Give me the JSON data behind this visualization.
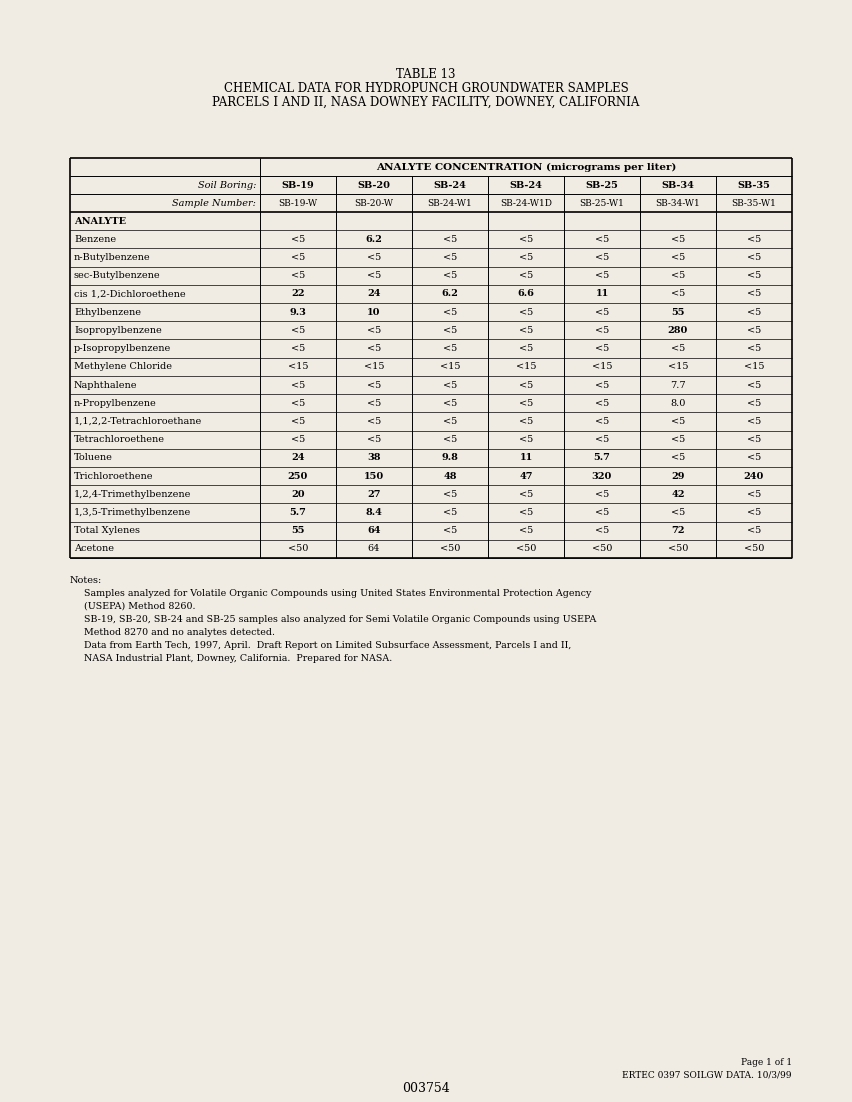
{
  "title_line1": "TABLE 13",
  "title_line2": "CHEMICAL DATA FOR HYDROPUNCH GROUNDWATER SAMPLES",
  "title_line3": "PARCELS I AND II, NASA DOWNEY FACILITY, DOWNEY, CALIFORNIA",
  "header_concentration": "ANALYTE CONCENTRATION (micrograms per liter)",
  "col_headers_boring": [
    "SB-19",
    "SB-20",
    "SB-24",
    "SB-24",
    "SB-25",
    "SB-34",
    "SB-35"
  ],
  "col_headers_sample": [
    "SB-19-W",
    "SB-20-W",
    "SB-24-W1",
    "SB-24-W1D",
    "SB-25-W1",
    "SB-34-W1",
    "SB-35-W1"
  ],
  "analytes": [
    "ANALYTE",
    "Benzene",
    "n-Butylbenzene",
    "sec-Butylbenzene",
    "cis 1,2-Dichloroethene",
    "Ethylbenzene",
    "Isopropylbenzene",
    "p-Isopropylbenzene",
    "Methylene Chloride",
    "Naphthalene",
    "n-Propylbenzene",
    "1,1,2,2-Tetrachloroethane",
    "Tetrachloroethene",
    "Toluene",
    "Trichloroethene",
    "1,2,4-Trimethylbenzene",
    "1,3,5-Trimethylbenzene",
    "Total Xylenes",
    "Acetone"
  ],
  "data": [
    [
      "",
      "",
      "",
      "",
      "",
      "",
      ""
    ],
    [
      "<5",
      "6.2",
      "<5",
      "<5",
      "<5",
      "<5",
      "<5"
    ],
    [
      "<5",
      "<5",
      "<5",
      "<5",
      "<5",
      "<5",
      "<5"
    ],
    [
      "<5",
      "<5",
      "<5",
      "<5",
      "<5",
      "<5",
      "<5"
    ],
    [
      "22",
      "24",
      "6.2",
      "6.6",
      "11",
      "<5",
      "<5"
    ],
    [
      "9.3",
      "10",
      "<5",
      "<5",
      "<5",
      "55",
      "<5"
    ],
    [
      "<5",
      "<5",
      "<5",
      "<5",
      "<5",
      "280",
      "<5"
    ],
    [
      "<5",
      "<5",
      "<5",
      "<5",
      "<5",
      "<5",
      "<5"
    ],
    [
      "<15",
      "<15",
      "<15",
      "<15",
      "<15",
      "<15",
      "<15"
    ],
    [
      "<5",
      "<5",
      "<5",
      "<5",
      "<5",
      "7.7",
      "<5"
    ],
    [
      "<5",
      "<5",
      "<5",
      "<5",
      "<5",
      "8.0",
      "<5"
    ],
    [
      "<5",
      "<5",
      "<5",
      "<5",
      "<5",
      "<5",
      "<5"
    ],
    [
      "<5",
      "<5",
      "<5",
      "<5",
      "<5",
      "<5",
      "<5"
    ],
    [
      "24",
      "38",
      "9.8",
      "11",
      "5.7",
      "<5",
      "<5"
    ],
    [
      "250",
      "150",
      "48",
      "47",
      "320",
      "29",
      "240"
    ],
    [
      "20",
      "27",
      "<5",
      "<5",
      "<5",
      "42",
      "<5"
    ],
    [
      "5.7",
      "8.4",
      "<5",
      "<5",
      "<5",
      "<5",
      "<5"
    ],
    [
      "55",
      "64",
      "<5",
      "<5",
      "<5",
      "72",
      "<5"
    ],
    [
      "<50",
      "64",
      "<50",
      "<50",
      "<50",
      "<50",
      "<50"
    ]
  ],
  "notes_line1": "Notes:",
  "notes_lines": [
    "  Samples analyzed for Volatile Organic Compounds using United States Environmental Protection Agency",
    "  (USEPA) Method 8260.",
    "  SB-19, SB-20, SB-24 and SB-25 samples also analyzed for Semi Volatile Organic Compounds using USEPA",
    "  Method 8270 and no analytes detected.",
    "  Data from Earth Tech, 1997, April.  Draft Report on Limited Subsurface Assessment, Parcels I and II,",
    "  NASA Industrial Plant, Downey, California.  Prepared for NASA."
  ],
  "footer_right_line1": "Page 1 of 1",
  "footer_right_line2": "ERTEC 0397 SOILGW DATA. 10/3/99",
  "footer_center": "003754",
  "bg_color": "#f0ece4"
}
